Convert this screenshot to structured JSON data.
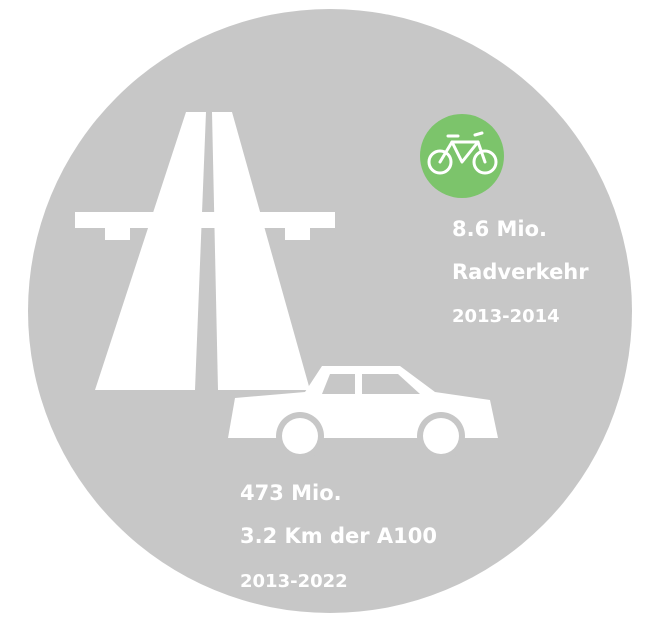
{
  "bike": {
    "value": "8.6 Mio.",
    "label": "Radverkehr",
    "period": "2013-2014"
  },
  "car": {
    "value": "473 Mio.",
    "label": "3.2 Km der A100",
    "period": "2013-2022"
  }
}
